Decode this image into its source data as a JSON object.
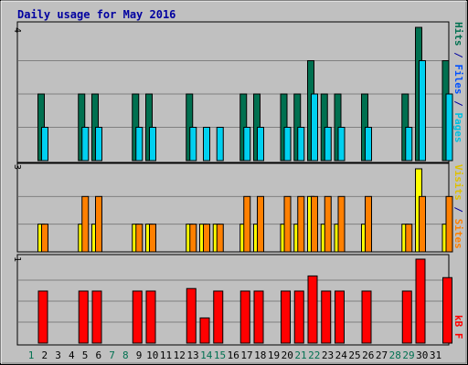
{
  "title": "Daily usage for May 2016",
  "colors": {
    "background": "#c0c0c0",
    "panel": "#c0c0c0",
    "grid": "#808080",
    "title": "#0000a0",
    "hits": "#007050",
    "files": "#00d0f0",
    "pages": "#00c0e0",
    "visits": "#ffff00",
    "sites": "#ff8000",
    "kbytes": "#ff0000",
    "weekday_label": "#000000",
    "weekend_label": "#007050"
  },
  "chart_data": [
    {
      "type": "bar",
      "panel": "hits-files-pages",
      "categories": [
        "1",
        "2",
        "3",
        "4",
        "5",
        "6",
        "7",
        "8",
        "9",
        "10",
        "11",
        "12",
        "13",
        "14",
        "15",
        "16",
        "17",
        "18",
        "19",
        "20",
        "21",
        "22",
        "23",
        "24",
        "25",
        "26",
        "27",
        "28",
        "29",
        "30",
        "31"
      ],
      "ylim": [
        0,
        4
      ],
      "ytick_labels": [
        "4"
      ],
      "legend": {
        "hits": "Hits",
        "sep1": " / ",
        "files": "Files",
        "sep2": " / ",
        "pages": "Pages"
      },
      "series": [
        {
          "name": "Hits",
          "values": [
            2,
            0,
            0,
            2,
            2,
            0,
            0,
            2,
            2,
            0,
            0,
            2,
            0,
            0,
            0,
            2,
            2,
            0,
            2,
            2,
            3,
            2,
            2,
            0,
            2,
            0,
            0,
            2,
            4,
            0,
            3
          ]
        },
        {
          "name": "Files",
          "values": [
            1,
            0,
            0,
            1,
            1,
            0,
            0,
            1,
            1,
            0,
            0,
            1,
            1,
            1,
            0,
            1,
            1,
            0,
            1,
            1,
            2,
            1,
            1,
            0,
            1,
            0,
            0,
            1,
            3,
            0,
            2
          ]
        }
      ]
    },
    {
      "type": "bar",
      "panel": "visits-sites",
      "categories": [
        "1",
        "2",
        "3",
        "4",
        "5",
        "6",
        "7",
        "8",
        "9",
        "10",
        "11",
        "12",
        "13",
        "14",
        "15",
        "16",
        "17",
        "18",
        "19",
        "20",
        "21",
        "22",
        "23",
        "24",
        "25",
        "26",
        "27",
        "28",
        "29",
        "30",
        "31"
      ],
      "ylim": [
        0,
        3
      ],
      "ytick_labels": [
        "3"
      ],
      "legend": {
        "visits": "Visits",
        "sep1": " / ",
        "sites": "Sites"
      },
      "series": [
        {
          "name": "Visits",
          "values": [
            1,
            0,
            0,
            1,
            1,
            0,
            0,
            1,
            1,
            0,
            0,
            1,
            1,
            1,
            0,
            1,
            1,
            0,
            1,
            1,
            2,
            1,
            1,
            0,
            1,
            0,
            0,
            1,
            3,
            0,
            1
          ]
        },
        {
          "name": "Sites",
          "values": [
            1,
            0,
            0,
            2,
            2,
            0,
            0,
            1,
            1,
            0,
            0,
            1,
            1,
            1,
            0,
            2,
            2,
            0,
            2,
            2,
            2,
            2,
            2,
            0,
            2,
            0,
            0,
            1,
            2,
            0,
            2
          ]
        }
      ]
    },
    {
      "type": "bar",
      "panel": "kbytes",
      "categories": [
        "1",
        "2",
        "3",
        "4",
        "5",
        "6",
        "7",
        "8",
        "9",
        "10",
        "11",
        "12",
        "13",
        "14",
        "15",
        "16",
        "17",
        "18",
        "19",
        "20",
        "21",
        "22",
        "23",
        "24",
        "25",
        "26",
        "27",
        "28",
        "29",
        "30",
        "31"
      ],
      "ylim": [
        0,
        1
      ],
      "ytick_labels": [
        "1"
      ],
      "legend": {
        "kbytes": "kB F"
      },
      "series": [
        {
          "name": "kB F",
          "values": [
            0.62,
            0,
            0,
            0.62,
            0.62,
            0,
            0,
            0.62,
            0.62,
            0,
            0,
            0.65,
            0.3,
            0.62,
            0,
            0.62,
            0.62,
            0,
            0.62,
            0.62,
            0.8,
            0.62,
            0.62,
            0,
            0.62,
            0,
            0,
            0.62,
            1.0,
            0,
            0.78
          ]
        }
      ]
    }
  ],
  "weekend_days": [
    1,
    7,
    8,
    14,
    15,
    21,
    22,
    28,
    29
  ]
}
